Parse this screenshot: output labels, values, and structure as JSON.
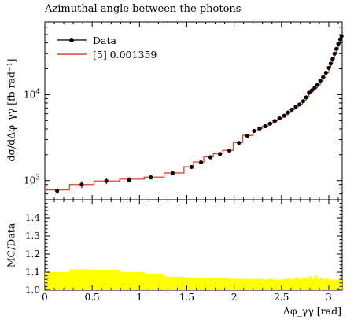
{
  "chart_data": {
    "type": "line",
    "title": "Azimuthal angle between the photons",
    "xlabel": "Δφ_γγ [rad]",
    "ylabel": "dσ/dΔφ_γγ [fb rad⁻¹]",
    "ratio_ylabel": "MC/Data",
    "xlim": [
      0,
      3.14159
    ],
    "ylim": [
      600,
      70000
    ],
    "yscale": "log",
    "ratio_ylim": [
      1.0,
      1.5
    ],
    "x_ticks": [
      "0",
      "0.5",
      "1",
      "1.5",
      "2",
      "2.5",
      "3"
    ],
    "y_ticks": [
      "10^3",
      "10^4"
    ],
    "ratio_ticks": [
      "1.0",
      "1.1",
      "1.2",
      "1.3",
      "1.4"
    ],
    "legend": {
      "data_label": "Data",
      "mc_label": "[5] 0.001359",
      "placement": "top-left"
    },
    "colors": {
      "data": "#000000",
      "mc": "#e8402c",
      "band": "#ffff00"
    },
    "data": {
      "x": [
        0.13,
        0.39,
        0.65,
        0.89,
        1.12,
        1.35,
        1.55,
        1.65,
        1.75,
        1.85,
        1.95,
        2.05,
        2.14,
        2.21,
        2.27,
        2.33,
        2.38,
        2.43,
        2.48,
        2.53,
        2.57,
        2.61,
        2.65,
        2.69,
        2.73,
        2.76,
        2.79,
        2.82,
        2.85,
        2.88,
        2.91,
        2.94,
        2.97,
        3.0,
        3.02,
        3.04,
        3.06,
        3.08,
        3.1,
        3.12,
        3.135
      ],
      "y": [
        760,
        900,
        990,
        1020,
        1090,
        1220,
        1440,
        1630,
        1870,
        2040,
        2230,
        2750,
        3330,
        3800,
        4050,
        4300,
        4600,
        4950,
        5300,
        5700,
        6200,
        6700,
        7200,
        7700,
        8400,
        9300,
        10500,
        11200,
        12000,
        13000,
        14500,
        16000,
        18000,
        20500,
        23000,
        26000,
        30000,
        34000,
        39000,
        44000,
        48000
      ],
      "yerr": [
        70,
        80,
        80,
        70,
        60,
        60,
        70,
        70,
        80,
        80,
        90,
        100,
        120,
        130,
        140,
        140,
        150,
        160,
        170,
        180,
        190,
        200,
        210,
        220,
        230,
        250,
        280,
        290,
        300,
        320,
        350,
        380,
        420,
        460,
        500,
        550,
        600,
        650,
        700,
        750,
        800
      ]
    },
    "mc": {
      "edges": [
        0,
        0.26,
        0.52,
        0.79,
        1.05,
        1.26,
        1.47,
        1.57,
        1.68,
        1.78,
        1.88,
        1.99,
        2.09,
        2.2,
        2.25,
        2.3,
        2.36,
        2.41,
        2.46,
        2.51,
        2.56,
        2.6,
        2.64,
        2.68,
        2.72,
        2.76,
        2.79,
        2.82,
        2.85,
        2.88,
        2.91,
        2.94,
        2.97,
        3.0,
        3.02,
        3.04,
        3.06,
        3.08,
        3.1,
        3.12,
        3.14159
      ],
      "values": [
        780,
        900,
        990,
        1040,
        1100,
        1230,
        1450,
        1650,
        1890,
        2060,
        2250,
        2780,
        3360,
        3830,
        4080,
        4330,
        4640,
        4990,
        5340,
        5740,
        6240,
        6740,
        7240,
        7740,
        8440,
        9340,
        10500,
        11200,
        12000,
        13000,
        14500,
        16000,
        18000,
        20500,
        23000,
        26000,
        30000,
        34000,
        39000,
        45000
      ]
    },
    "ratio": {
      "edges": [
        0,
        0.26,
        0.52,
        0.79,
        1.05,
        1.26,
        1.47,
        1.57,
        1.68,
        1.78,
        1.88,
        1.99,
        2.09,
        2.2,
        2.25,
        2.3,
        2.36,
        2.41,
        2.46,
        2.51,
        2.56,
        2.6,
        2.64,
        2.68,
        2.72,
        2.76,
        2.79,
        2.82,
        2.85,
        2.88,
        2.91,
        2.94,
        2.97,
        3.0,
        3.02,
        3.04,
        3.06,
        3.08,
        3.1,
        3.12,
        3.14159
      ],
      "values": [
        1.1,
        1.115,
        1.11,
        1.1,
        1.09,
        1.075,
        1.07,
        1.068,
        1.066,
        1.065,
        1.064,
        1.063,
        1.062,
        1.062,
        1.063,
        1.06,
        1.064,
        1.058,
        1.06,
        1.062,
        1.065,
        1.06,
        1.07,
        1.062,
        1.072,
        1.064,
        1.078,
        1.066,
        1.08,
        1.062,
        1.07,
        1.06,
        1.065,
        1.058,
        1.062,
        1.056,
        1.06,
        1.058,
        1.062,
        1.06
      ]
    }
  }
}
